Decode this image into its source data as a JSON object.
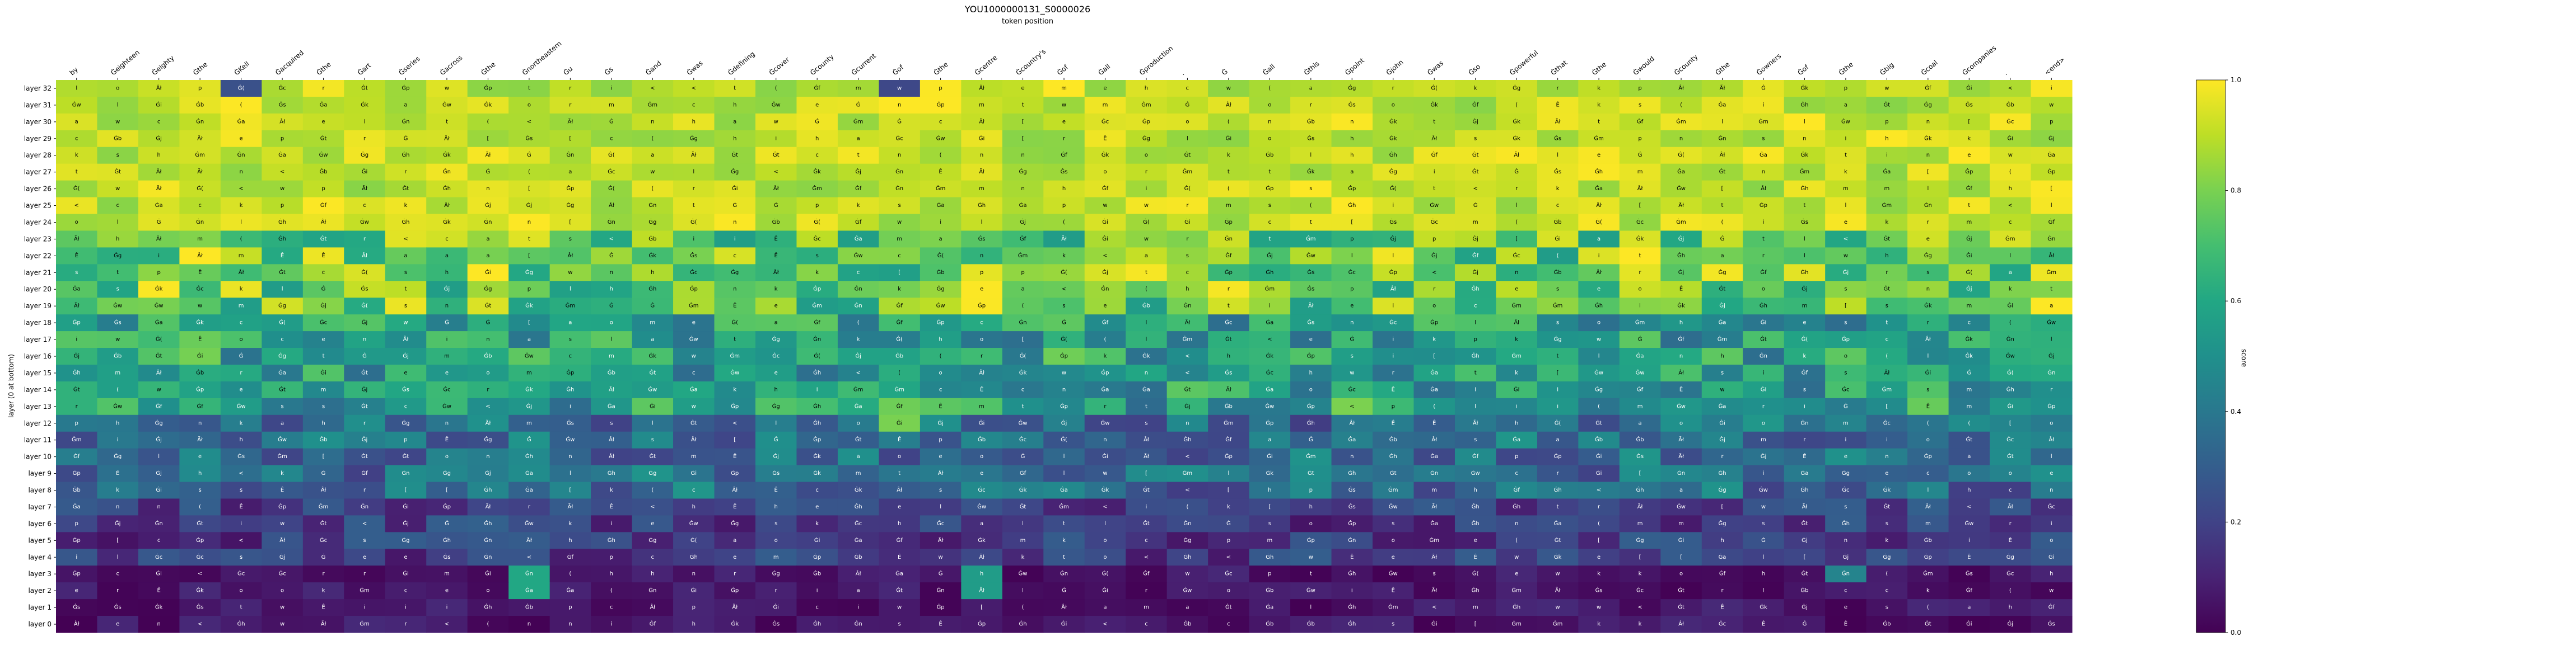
{
  "chart_data": {
    "type": "heatmap",
    "title": "YOU1000000131_S0000026",
    "subtitle": "token position",
    "xlabel": "",
    "ylabel": "layer (0 at bottom)",
    "colorbar_label": "score",
    "colorbar_range": [
      0.0,
      1.0
    ],
    "colorbar_ticks": [
      "0.0",
      "0.2",
      "0.4",
      "0.6",
      "0.8",
      "1.0"
    ],
    "colormap": "viridis",
    "x_tokens": [
      "by",
      "Ġeighteen",
      "Ġeighty",
      "Ġthe",
      "ĠKell",
      "Ġacquired",
      "Ġthe",
      "Ġart",
      "Ġseries",
      "Ġacross",
      "Ġthe",
      "Ġnortheastern",
      "Ġu",
      "Ġs",
      "Ġand",
      "Ġwas",
      "Ġdefining",
      "Ġcover",
      "Ġcounty",
      "Ġcurrent",
      "Ġof",
      "Ġthe",
      "Ġcentre",
      "Ġcountry's",
      "Ġof",
      "Ġall",
      "Ġproduction",
      ".",
      "Ġ",
      "Ġall",
      "Ġthis",
      "Ġpoint",
      "Ġjohn",
      "Ġwas",
      "Ġso",
      "Ġpowerful",
      "Ġthat",
      "Ġthe",
      "Ġwould",
      "Ġcounty",
      "Ġthe",
      "Ġowners",
      "Ġof",
      "Ġthe",
      "Ġbig",
      "Ġcoal",
      "Ġcompanies",
      ".",
      "<end>"
    ],
    "y_layers": [
      "layer 32",
      "layer 31",
      "layer 30",
      "layer 29",
      "layer 28",
      "layer 27",
      "layer 26",
      "layer 25",
      "layer 24",
      "layer 23",
      "layer 22",
      "layer 21",
      "layer 20",
      "layer 19",
      "layer 18",
      "layer 17",
      "layer 16",
      "layer 15",
      "layer 14",
      "layer 13",
      "layer 12",
      "layer 11",
      "layer 10",
      "layer 9",
      "layer 8",
      "layer 7",
      "layer 6",
      "layer 5",
      "layer 4",
      "layer 3",
      "layer 2",
      "layer 1",
      "layer 0"
    ],
    "token_pool": [
      "a",
      "e",
      "s",
      "t",
      "i",
      "n",
      "o",
      "w",
      "c",
      "(",
      "[",
      "<",
      "Ġ",
      "Ġt",
      "Ġa",
      "Ġs",
      "Ġc",
      "Ġ(",
      "Âł",
      "Ãł",
      "Ê",
      "Ġw",
      "Ġg",
      "Ġn",
      "Ġi",
      "Ġb",
      "Ġm",
      "Ġp",
      "Ġj",
      "Ġk",
      "Ġh",
      "Ġf",
      "r",
      "l",
      "p",
      "k",
      "h",
      "m"
    ],
    "highlight_cells": [
      {
        "row": 0,
        "col": 4,
        "value": 0.25
      },
      {
        "row": 0,
        "col": 20,
        "value": 0.22
      },
      {
        "row": 29,
        "col": 11,
        "value": 0.6
      },
      {
        "row": 30,
        "col": 11,
        "value": 0.6
      },
      {
        "row": 29,
        "col": 22,
        "value": 0.55
      },
      {
        "row": 30,
        "col": 22,
        "value": 0.55
      },
      {
        "row": 29,
        "col": 43,
        "value": 0.45
      },
      {
        "row": 20,
        "col": 20,
        "value": 0.8
      },
      {
        "row": 19,
        "col": 20,
        "value": 0.78
      }
    ],
    "trend": "scores high in upper layers (approx. 0.85-1.0 for layers 24-32) and decreasing toward ~0.0-0.1 in layers 0-5"
  }
}
